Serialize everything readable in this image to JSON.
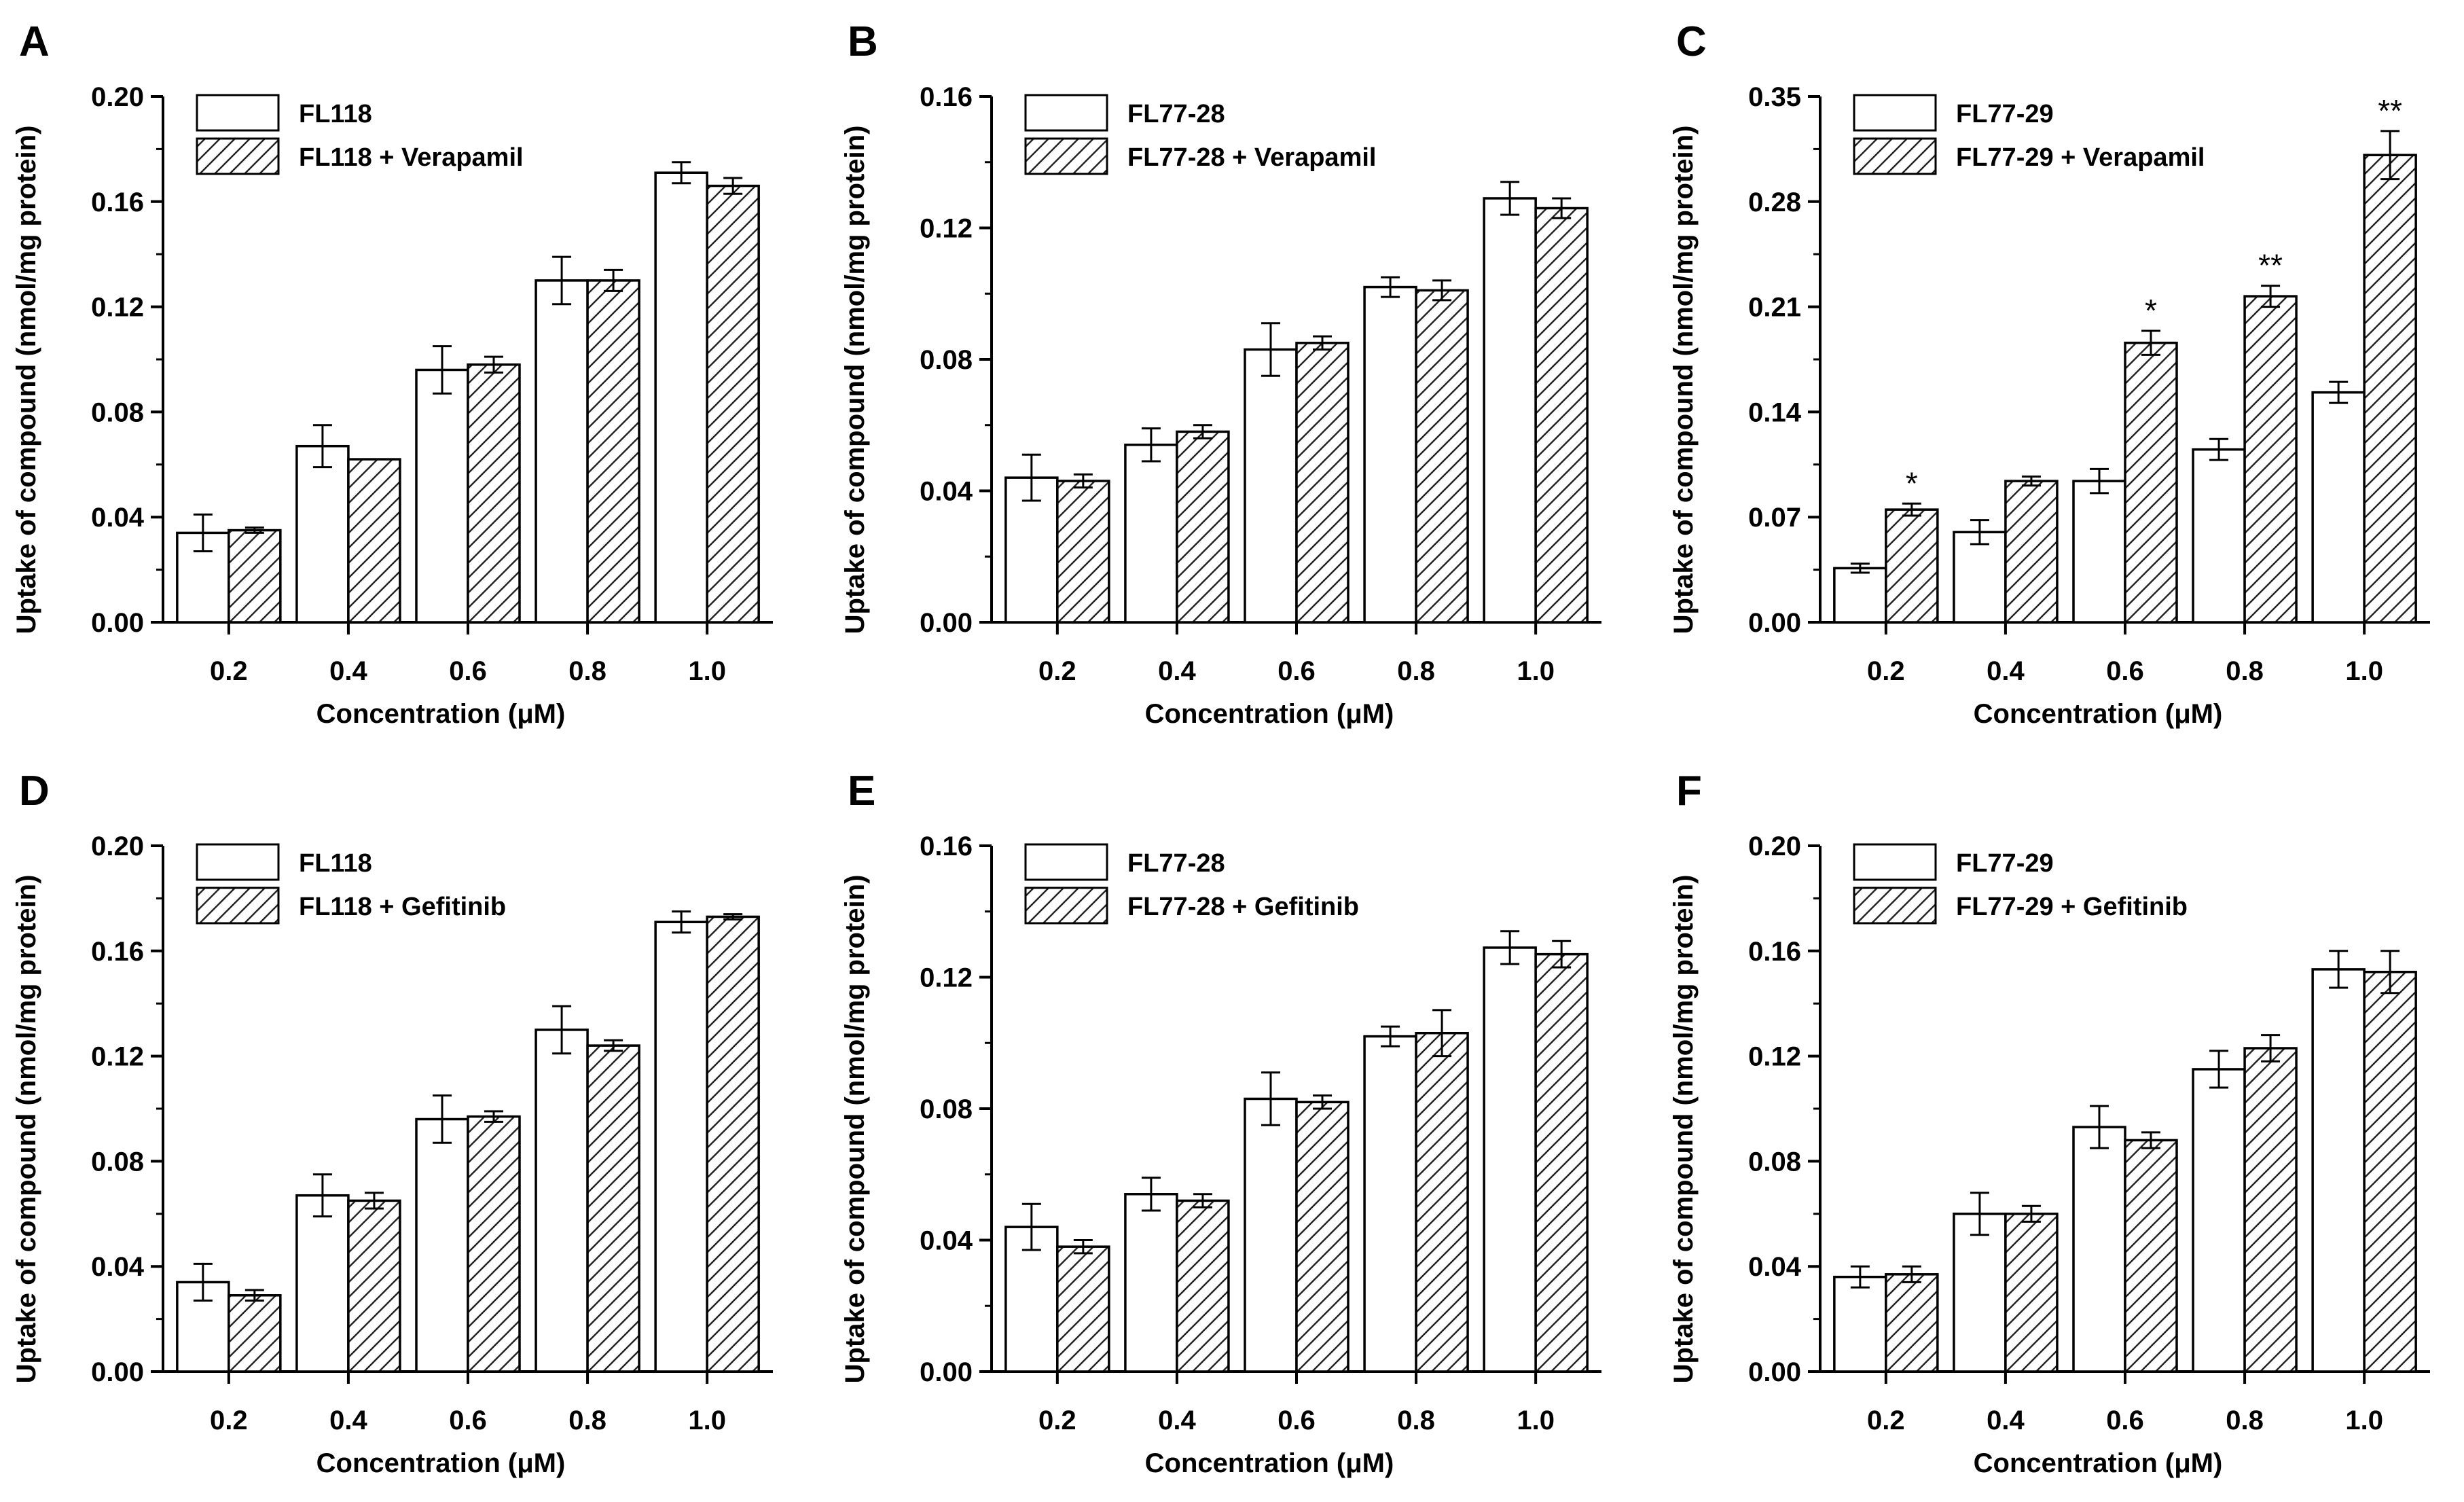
{
  "chart_data": [
    {
      "panel": "A",
      "type": "bar",
      "categories": [
        "0.2",
        "0.4",
        "0.6",
        "0.8",
        "1.0"
      ],
      "xlabel": "Concentration (μM)",
      "ylabel": "Uptake of compound (nmol/mg protein)",
      "ylim": [
        0,
        0.2
      ],
      "yticks": [
        "0.00",
        "0.04",
        "0.08",
        "0.12",
        "0.16",
        "0.20"
      ],
      "legend_position": "top-left",
      "series": [
        {
          "name": "FL118",
          "pattern": "open",
          "values": [
            0.034,
            0.067,
            0.096,
            0.13,
            0.171
          ],
          "errors": [
            0.007,
            0.008,
            0.009,
            0.009,
            0.004
          ],
          "marks": [
            "",
            "",
            "",
            "",
            ""
          ]
        },
        {
          "name": "FL118 + Verapamil",
          "pattern": "hatched",
          "values": [
            0.035,
            0.062,
            0.098,
            0.13,
            0.166
          ],
          "errors": [
            0.001,
            0.0,
            0.003,
            0.004,
            0.003
          ],
          "marks": [
            "",
            "",
            "",
            "",
            ""
          ]
        }
      ]
    },
    {
      "panel": "B",
      "type": "bar",
      "categories": [
        "0.2",
        "0.4",
        "0.6",
        "0.8",
        "1.0"
      ],
      "xlabel": "Concentration (μM)",
      "ylabel": "Uptake of compound (nmol/mg protein)",
      "ylim": [
        0,
        0.16
      ],
      "yticks": [
        "0.00",
        "0.04",
        "0.08",
        "0.12",
        "0.16"
      ],
      "legend_position": "top-left",
      "series": [
        {
          "name": "FL77-28",
          "pattern": "open",
          "values": [
            0.044,
            0.054,
            0.083,
            0.102,
            0.129
          ],
          "errors": [
            0.007,
            0.005,
            0.008,
            0.003,
            0.005
          ],
          "marks": [
            "",
            "",
            "",
            "",
            ""
          ]
        },
        {
          "name": "FL77-28 + Verapamil",
          "pattern": "hatched",
          "values": [
            0.043,
            0.058,
            0.085,
            0.101,
            0.126
          ],
          "errors": [
            0.002,
            0.002,
            0.002,
            0.003,
            0.003
          ],
          "marks": [
            "",
            "",
            "",
            "",
            ""
          ]
        }
      ]
    },
    {
      "panel": "C",
      "type": "bar",
      "categories": [
        "0.2",
        "0.4",
        "0.6",
        "0.8",
        "1.0"
      ],
      "xlabel": "Concentration (μM)",
      "ylabel": "Uptake of compound (nmol/mg protein)",
      "ylim": [
        0,
        0.35
      ],
      "yticks": [
        "0.00",
        "0.07",
        "0.14",
        "0.21",
        "0.28",
        "0.35"
      ],
      "legend_position": "top-left",
      "series": [
        {
          "name": "FL77-29",
          "pattern": "open",
          "values": [
            0.036,
            0.06,
            0.094,
            0.115,
            0.153
          ],
          "errors": [
            0.003,
            0.008,
            0.008,
            0.007,
            0.007
          ],
          "marks": [
            "",
            "",
            "",
            "",
            ""
          ]
        },
        {
          "name": "FL77-29 + Verapamil",
          "pattern": "hatched",
          "values": [
            0.075,
            0.094,
            0.186,
            0.217,
            0.311
          ],
          "errors": [
            0.004,
            0.003,
            0.008,
            0.007,
            0.016
          ],
          "marks": [
            "*",
            "",
            "*",
            "**",
            "**"
          ]
        }
      ]
    },
    {
      "panel": "D",
      "type": "bar",
      "categories": [
        "0.2",
        "0.4",
        "0.6",
        "0.8",
        "1.0"
      ],
      "xlabel": "Concentration (μM)",
      "ylabel": "Uptake of compound (nmol/mg protein)",
      "ylim": [
        0,
        0.2
      ],
      "yticks": [
        "0.00",
        "0.04",
        "0.08",
        "0.12",
        "0.16",
        "0.20"
      ],
      "legend_position": "top-left",
      "series": [
        {
          "name": "FL118",
          "pattern": "open",
          "values": [
            0.034,
            0.067,
            0.096,
            0.13,
            0.171
          ],
          "errors": [
            0.007,
            0.008,
            0.009,
            0.009,
            0.004
          ],
          "marks": [
            "",
            "",
            "",
            "",
            ""
          ]
        },
        {
          "name": "FL118 + Gefitinib",
          "pattern": "hatched",
          "values": [
            0.029,
            0.065,
            0.097,
            0.124,
            0.173
          ],
          "errors": [
            0.002,
            0.003,
            0.002,
            0.002,
            0.001
          ],
          "marks": [
            "",
            "",
            "",
            "",
            ""
          ]
        }
      ]
    },
    {
      "panel": "E",
      "type": "bar",
      "categories": [
        "0.2",
        "0.4",
        "0.6",
        "0.8",
        "1.0"
      ],
      "xlabel": "Concentration (μM)",
      "ylabel": "Uptake of compound (nmol/mg protein)",
      "ylim": [
        0,
        0.16
      ],
      "yticks": [
        "0.00",
        "0.04",
        "0.08",
        "0.12",
        "0.16"
      ],
      "legend_position": "top-left",
      "series": [
        {
          "name": "FL77-28",
          "pattern": "open",
          "values": [
            0.044,
            0.054,
            0.083,
            0.102,
            0.129
          ],
          "errors": [
            0.007,
            0.005,
            0.008,
            0.003,
            0.005
          ],
          "marks": [
            "",
            "",
            "",
            "",
            ""
          ]
        },
        {
          "name": "FL77-28 + Gefitinib",
          "pattern": "hatched",
          "values": [
            0.038,
            0.052,
            0.082,
            0.103,
            0.127
          ],
          "errors": [
            0.002,
            0.002,
            0.002,
            0.007,
            0.004
          ],
          "marks": [
            "",
            "",
            "",
            "",
            ""
          ]
        }
      ]
    },
    {
      "panel": "F",
      "type": "bar",
      "categories": [
        "0.2",
        "0.4",
        "0.6",
        "0.8",
        "1.0"
      ],
      "xlabel": "Concentration (μM)",
      "ylabel": "Uptake of compound (nmol/mg protein)",
      "ylim": [
        0,
        0.2
      ],
      "yticks": [
        "0.00",
        "0.04",
        "0.08",
        "0.12",
        "0.16",
        "0.20"
      ],
      "legend_position": "top-left",
      "series": [
        {
          "name": "FL77-29",
          "pattern": "open",
          "values": [
            0.036,
            0.06,
            0.093,
            0.115,
            0.153
          ],
          "errors": [
            0.004,
            0.008,
            0.008,
            0.007,
            0.007
          ],
          "marks": [
            "",
            "",
            "",
            "",
            ""
          ]
        },
        {
          "name": "FL77-29 + Gefitinib",
          "pattern": "hatched",
          "values": [
            0.037,
            0.06,
            0.088,
            0.123,
            0.152
          ],
          "errors": [
            0.003,
            0.003,
            0.003,
            0.005,
            0.008
          ],
          "marks": [
            "",
            "",
            "",
            "",
            ""
          ]
        }
      ]
    }
  ]
}
